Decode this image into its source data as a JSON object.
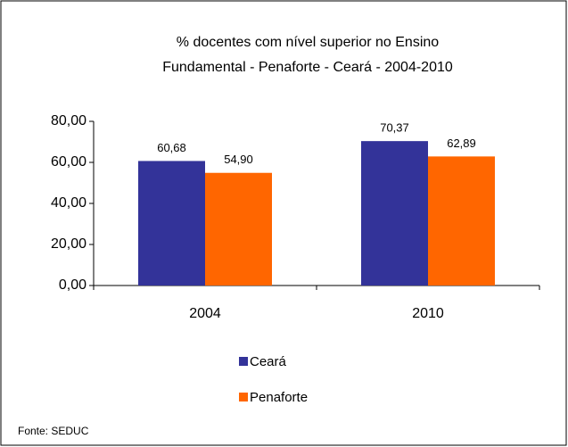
{
  "chart_data": {
    "type": "bar",
    "title": [
      "% docentes com nível  superior no Ensino",
      "Fundamental - Penaforte  -  Ceará - 2004-2010"
    ],
    "categories": [
      "2004",
      "2010"
    ],
    "series": [
      {
        "name": "Ceará",
        "color": "#333399",
        "values": [
          60.68,
          70.37
        ],
        "value_labels": [
          "60,68",
          "70,37"
        ]
      },
      {
        "name": "Penaforte",
        "color": "#ff6600",
        "values": [
          54.9,
          62.89
        ],
        "value_labels": [
          "54,90",
          "62,89"
        ]
      }
    ],
    "ylim": [
      0,
      80
    ],
    "yticks": [
      {
        "value": 0,
        "label": "0,00"
      },
      {
        "value": 20,
        "label": "20,00"
      },
      {
        "value": 40,
        "label": "40,00"
      },
      {
        "value": 60,
        "label": "60,00"
      },
      {
        "value": 80,
        "label": "80,00"
      }
    ],
    "grid": false,
    "legend": "bottom",
    "source": "Fonte: SEDUC"
  }
}
